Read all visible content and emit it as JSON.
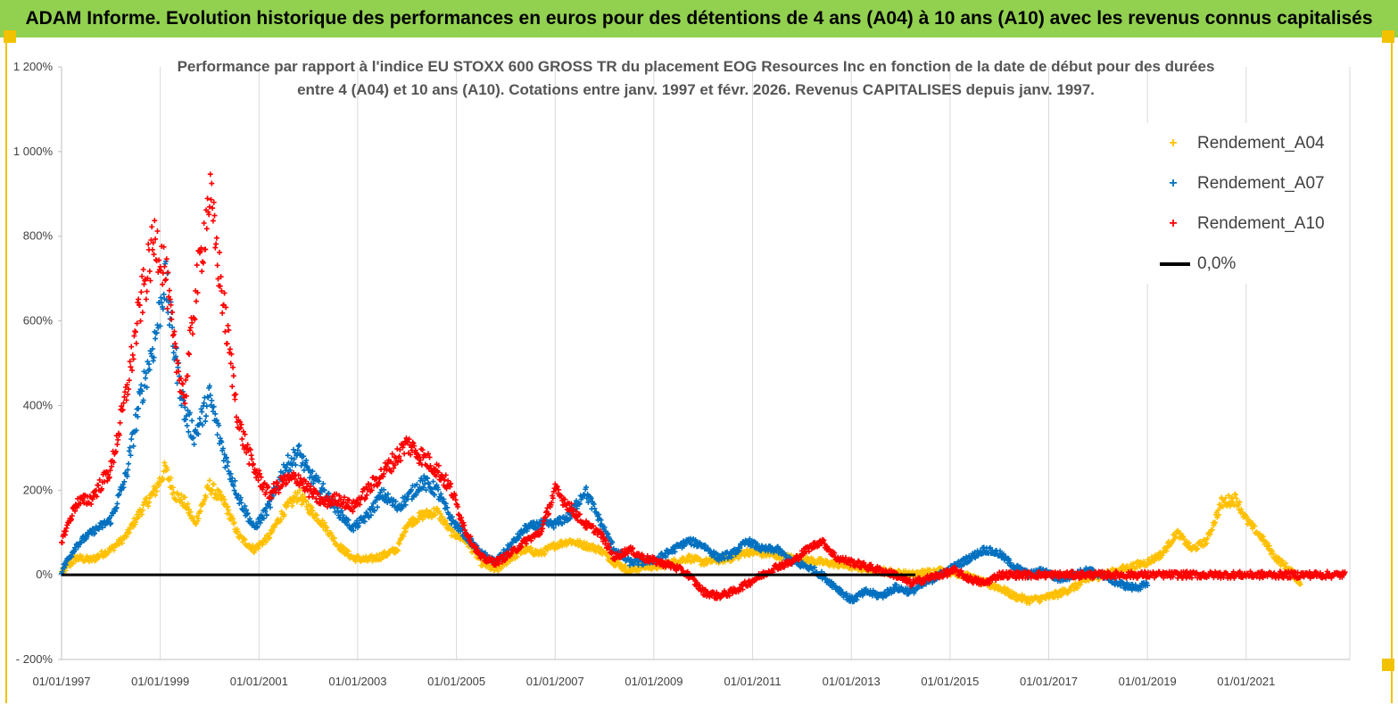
{
  "header": {
    "title": "ADAM Informe. Evolution historique des performances en euros pour des détentions de 4 ans (A04) à 10 ans (A10) avec les revenus connus capitalisés"
  },
  "chart_data": {
    "type": "scatter",
    "title_line1": "Performance par rapport à l'indice EU STOXX 600 GROSS TR  du placement EOG Resources Inc en fonction de la date de début pour des durées",
    "title_line2": "entre 4 (A04) et 10 ans (A10).  Cotations entre janv. 1997 et févr. 2026. Revenus  CAPITALISES depuis janv. 1997.",
    "x_range": [
      1997.0,
      2023.1
    ],
    "ylim": [
      -200,
      1200
    ],
    "y_ticks": [
      -200,
      0,
      200,
      400,
      600,
      800,
      1000,
      1200
    ],
    "y_tick_labels": [
      "- 200%",
      "0%",
      "200%",
      "400%",
      "600%",
      "800%",
      "1 000%",
      "1 200%"
    ],
    "x_ticks": [
      1997,
      1999,
      2001,
      2003,
      2005,
      2007,
      2009,
      2011,
      2013,
      2015,
      2017,
      2019,
      2021
    ],
    "x_tick_labels": [
      "01/01/1997",
      "01/01/1999",
      "01/01/2001",
      "01/01/2003",
      "01/01/2005",
      "01/01/2007",
      "01/01/2009",
      "01/01/2011",
      "01/01/2013",
      "01/01/2015",
      "01/01/2017",
      "01/01/2019",
      "01/01/2021"
    ],
    "grid": "vertical",
    "legend_position": "top-right",
    "series": [
      {
        "name": "Rendement_A04",
        "color": "#ffc000",
        "x": [
          1997.0,
          1997.3,
          1997.6,
          1998.0,
          1998.3,
          1998.6,
          1998.9,
          1999.1,
          1999.3,
          1999.5,
          1999.7,
          2000.0,
          2000.3,
          2000.6,
          2000.9,
          2001.2,
          2001.5,
          2001.8,
          2002.0,
          2002.3,
          2002.6,
          2002.9,
          2003.2,
          2003.5,
          2003.8,
          2004.0,
          2004.3,
          2004.6,
          2004.9,
          2005.2,
          2005.5,
          2005.8,
          2006.1,
          2006.4,
          2006.7,
          2007.0,
          2007.3,
          2007.6,
          2007.9,
          2008.2,
          2008.5,
          2008.8,
          2009.1,
          2009.4,
          2009.7,
          2010.0,
          2010.3,
          2010.6,
          2010.9,
          2011.2,
          2011.5,
          2011.8,
          2012.1,
          2012.4,
          2012.7,
          2013.0,
          2013.3,
          2013.6,
          2013.9,
          2014.2,
          2014.5,
          2014.8,
          2015.1,
          2015.4,
          2015.7,
          2016.0,
          2016.3,
          2016.6,
          2016.9,
          2017.2,
          2017.5,
          2017.8,
          2018.1,
          2018.4,
          2018.7,
          2019.0,
          2019.3,
          2019.6,
          2019.9,
          2020.2,
          2020.5,
          2020.8,
          2021.0,
          2021.3,
          2021.6,
          2021.9,
          2022.1
        ],
        "values": [
          5,
          40,
          35,
          60,
          90,
          150,
          200,
          250,
          190,
          170,
          120,
          210,
          170,
          90,
          60,
          90,
          150,
          190,
          160,
          120,
          70,
          40,
          35,
          45,
          60,
          120,
          140,
          150,
          100,
          80,
          30,
          10,
          40,
          60,
          50,
          70,
          80,
          70,
          60,
          30,
          10,
          20,
          20,
          30,
          40,
          30,
          35,
          40,
          55,
          50,
          45,
          40,
          35,
          30,
          25,
          20,
          15,
          10,
          5,
          0,
          5,
          10,
          5,
          -5,
          -20,
          -30,
          -50,
          -60,
          -55,
          -45,
          -30,
          -10,
          0,
          10,
          20,
          30,
          50,
          100,
          60,
          80,
          170,
          180,
          130,
          90,
          40,
          10,
          -20
        ]
      },
      {
        "name": "Rendement_A07",
        "color": "#0070c0",
        "x": [
          1997.0,
          1997.3,
          1997.6,
          1998.0,
          1998.3,
          1998.6,
          1998.9,
          1999.1,
          1999.3,
          1999.5,
          1999.7,
          2000.0,
          2000.3,
          2000.6,
          2000.9,
          2001.2,
          2001.5,
          2001.8,
          2002.0,
          2002.3,
          2002.6,
          2002.9,
          2003.2,
          2003.5,
          2003.8,
          2004.0,
          2004.3,
          2004.6,
          2004.9,
          2005.2,
          2005.5,
          2005.8,
          2006.1,
          2006.4,
          2006.7,
          2007.0,
          2007.3,
          2007.6,
          2007.9,
          2008.2,
          2008.5,
          2008.8,
          2009.1,
          2009.4,
          2009.7,
          2010.0,
          2010.3,
          2010.6,
          2010.9,
          2011.2,
          2011.5,
          2011.8,
          2012.1,
          2012.4,
          2012.7,
          2013.0,
          2013.3,
          2013.6,
          2013.9,
          2014.2,
          2014.5,
          2014.8,
          2015.1,
          2015.4,
          2015.7,
          2016.0,
          2016.3,
          2016.6,
          2016.9,
          2017.2,
          2017.5,
          2017.8,
          2018.1,
          2018.4,
          2018.7,
          2019.0
        ],
        "values": [
          10,
          70,
          100,
          130,
          230,
          420,
          560,
          700,
          520,
          380,
          330,
          420,
          280,
          180,
          110,
          160,
          250,
          290,
          240,
          200,
          150,
          110,
          140,
          190,
          160,
          180,
          220,
          200,
          130,
          90,
          50,
          30,
          70,
          110,
          120,
          120,
          140,
          200,
          130,
          60,
          30,
          30,
          40,
          60,
          80,
          70,
          40,
          50,
          80,
          60,
          60,
          30,
          20,
          0,
          -30,
          -60,
          -40,
          -50,
          -30,
          -40,
          -20,
          0,
          20,
          40,
          60,
          50,
          20,
          0,
          10,
          -10,
          0,
          10,
          0,
          -20,
          -30,
          -25
        ]
      },
      {
        "name": "Rendement_A10",
        "color": "#ff0000",
        "x": [
          1997.0,
          1997.3,
          1997.6,
          1998.0,
          1998.3,
          1998.6,
          1998.9,
          1999.1,
          1999.3,
          1999.5,
          1999.7,
          2000.0,
          2000.3,
          2000.6,
          2000.9,
          2001.2,
          2001.5,
          2001.8,
          2002.0,
          2002.3,
          2002.6,
          2002.9,
          2003.2,
          2003.5,
          2003.8,
          2004.0,
          2004.3,
          2004.6,
          2004.9,
          2005.2,
          2005.5,
          2005.8,
          2006.1,
          2006.4,
          2006.7,
          2007.0,
          2007.3,
          2007.6,
          2007.9,
          2008.2,
          2008.5,
          2008.8,
          2009.1,
          2009.4,
          2009.7,
          2010.0,
          2010.3,
          2010.6,
          2010.9,
          2011.2,
          2011.5,
          2011.8,
          2012.1,
          2012.4,
          2012.7,
          2013.0,
          2013.3,
          2013.6,
          2013.9,
          2014.2,
          2014.5,
          2014.8,
          2015.1,
          2015.4,
          2015.7,
          2016.0,
          2016.5,
          2017.0,
          2017.5,
          2018.0,
          2018.5,
          2019.0,
          2019.5,
          2020.0,
          2020.5,
          2021.0,
          2021.5,
          2022.0,
          2022.5,
          2023.0
        ],
        "values": [
          80,
          170,
          180,
          250,
          420,
          640,
          800,
          720,
          520,
          420,
          650,
          900,
          620,
          350,
          250,
          190,
          220,
          230,
          200,
          170,
          180,
          160,
          200,
          240,
          280,
          310,
          280,
          250,
          200,
          100,
          40,
          30,
          50,
          80,
          100,
          200,
          160,
          120,
          100,
          40,
          60,
          40,
          30,
          20,
          0,
          -40,
          -50,
          -40,
          -20,
          0,
          20,
          30,
          60,
          80,
          40,
          30,
          20,
          10,
          0,
          -20,
          -10,
          0,
          10,
          -10,
          -20,
          0,
          0,
          0,
          0,
          0,
          0,
          0,
          0,
          0,
          0,
          0,
          0,
          0,
          0,
          0
        ]
      }
    ],
    "reference_line": {
      "name": "0,0%",
      "value": 0,
      "color": "#000000"
    }
  }
}
